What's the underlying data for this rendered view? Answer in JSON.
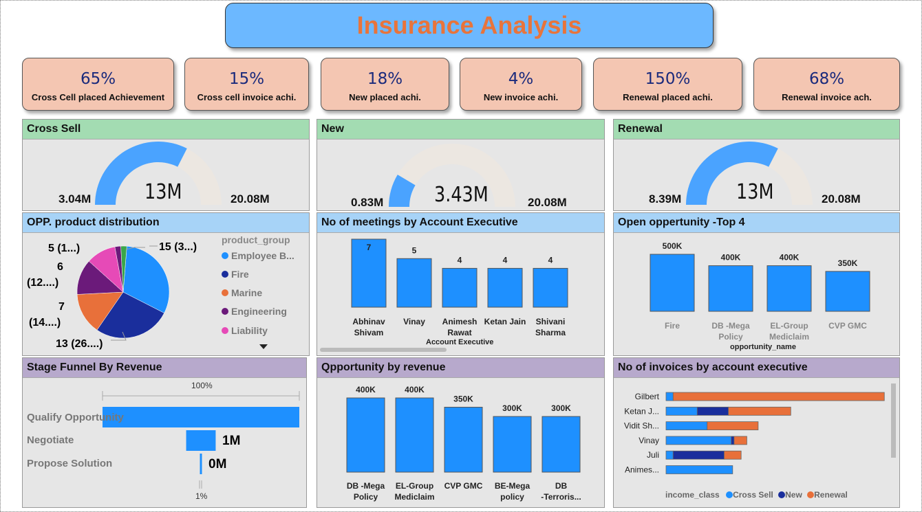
{
  "title": "Insurance Analysis",
  "kpis": [
    {
      "value": "65%",
      "label": "Cross Cell placed Achievement"
    },
    {
      "value": "15%",
      "label": "Cross  cell invoice achi."
    },
    {
      "value": "18%",
      "label": "New placed achi."
    },
    {
      "value": "4%",
      "label": "New invoice achi."
    },
    {
      "value": "150%",
      "label": "Renewal placed achi."
    },
    {
      "value": "68%",
      "label": "Renewal invoice ach."
    }
  ],
  "gauges": [
    {
      "title": "Cross Sell",
      "min_label": "3.04M",
      "value_label": "13M",
      "max_label": "20.08M",
      "fraction": 0.65
    },
    {
      "title": "New",
      "min_label": "0.83M",
      "value_label": "3.43M",
      "max_label": "20.08M",
      "fraction": 0.17
    },
    {
      "title": "Renewal",
      "min_label": "8.39M",
      "value_label": "13M",
      "max_label": "20.08M",
      "fraction": 0.65
    }
  ],
  "colors": {
    "accent": "#1e90ff",
    "track": "#ece7e1",
    "employee": "#1e90ff",
    "fire": "#1a2e9c",
    "marine": "#e8703a",
    "engineering": "#6b1a7a",
    "liability": "#e64ab7",
    "other": "#3aa64a"
  },
  "opp_distribution": {
    "title": "OPP. product distribution",
    "legend_title": "product_group",
    "legend": [
      "Employee B...",
      "Fire",
      "Marine",
      "Engineering",
      "Liability"
    ],
    "labels": [
      "15 (3...)",
      "13 (26....)",
      "7",
      "(14....)",
      "6",
      "(12....)",
      "5 (1...)"
    ],
    "chart_data": {
      "type": "pie",
      "values": [
        15,
        13,
        7,
        6,
        5,
        1,
        1
      ],
      "categories": [
        "Employee B...",
        "Fire",
        "Marine",
        "Engineering",
        "Liability",
        "",
        ""
      ]
    }
  },
  "meetings": {
    "title": "No of meetings by Account Executive",
    "xlabel": "Account Executive",
    "chart_data": {
      "type": "bar",
      "categories": [
        "Abhinav Shivam",
        "Vinay",
        "Animesh Rawat",
        "Ketan Jain",
        "Shivani Sharma"
      ],
      "values": [
        7,
        5,
        4,
        4,
        4
      ]
    },
    "value_labels": [
      "7",
      "5",
      "4",
      "4",
      "4"
    ],
    "cat_lines": [
      [
        "Abhinav",
        "Shivam"
      ],
      [
        "Vinay",
        ""
      ],
      [
        "Animesh",
        "Rawat"
      ],
      [
        "Ketan Jain",
        ""
      ],
      [
        "Shivani",
        "Sharma"
      ]
    ]
  },
  "open_opp": {
    "title": "Open oppertunity -Top 4",
    "xlabel": "opportunity_name",
    "chart_data": {
      "type": "bar",
      "categories": [
        "Fire",
        "DB -Mega Policy",
        "EL-Group Mediclaim",
        "CVP GMC"
      ],
      "values": [
        500000,
        400000,
        400000,
        350000
      ]
    },
    "value_labels": [
      "500K",
      "400K",
      "400K",
      "350K"
    ],
    "cat_lines": [
      [
        "Fire",
        ""
      ],
      [
        "DB -Mega",
        "Policy"
      ],
      [
        "EL-Group",
        "Mediclaim"
      ],
      [
        "CVP GMC",
        ""
      ]
    ]
  },
  "funnel": {
    "title": "Stage Funnel By Revenue",
    "top_label": "100%",
    "bottom_label": "1%",
    "stages": [
      "Qualify Opportunity",
      "Negotiate",
      "Propose Solution"
    ],
    "value_labels": [
      "",
      "1M",
      "0M"
    ],
    "chart_data": {
      "type": "bar",
      "categories": [
        "Qualify Opportunity",
        "Negotiate",
        "Propose Solution"
      ],
      "values": [
        100,
        15,
        1
      ]
    }
  },
  "opp_revenue": {
    "title": "Qpportunity by revenue",
    "chart_data": {
      "type": "bar",
      "categories": [
        "DB -Mega Policy",
        "EL-Group Mediclaim",
        "CVP GMC",
        "BE-Mega policy",
        "DB -Terroris..."
      ],
      "values": [
        400000,
        400000,
        350000,
        300000,
        300000
      ]
    },
    "value_labels": [
      "400K",
      "400K",
      "350K",
      "300K",
      "300K"
    ],
    "cat_lines": [
      [
        "DB -Mega",
        "Policy"
      ],
      [
        "EL-Group",
        "Mediclaim"
      ],
      [
        "CVP GMC",
        ""
      ],
      [
        "BE-Mega",
        "policy"
      ],
      [
        "DB",
        "-Terroris..."
      ]
    ]
  },
  "invoices": {
    "title": "No of invoices by account executive",
    "legend_title": "income_class",
    "legend": [
      "Cross Sell",
      "New",
      "Renewal"
    ],
    "chart_data": {
      "type": "bar",
      "categories": [
        "Gilbert",
        "Ketan J...",
        "Vidit Sh...",
        "Vinay",
        "Juli",
        "Animes..."
      ],
      "series": [
        {
          "name": "Cross Sell",
          "values": [
            0.5,
            2.2,
            2.9,
            4.6,
            0.5,
            4.7
          ]
        },
        {
          "name": "New",
          "values": [
            0,
            2.2,
            0,
            0.2,
            3.6,
            0
          ]
        },
        {
          "name": "Renewal",
          "values": [
            14.9,
            4.4,
            3.6,
            0.9,
            1.2,
            0
          ]
        }
      ]
    }
  }
}
